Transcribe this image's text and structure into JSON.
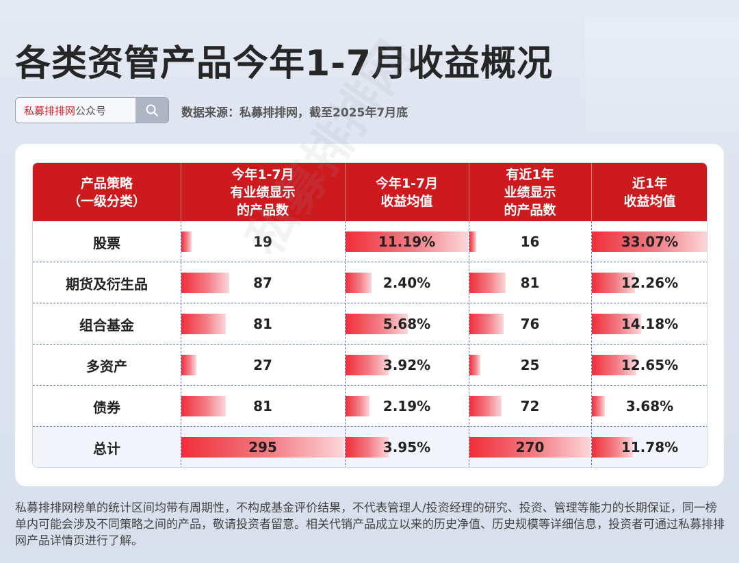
{
  "title": "各类资管产品今年1-7月收益概况",
  "search": {
    "brand": "私募排排网",
    "suffix": "公众号"
  },
  "source": "数据来源：私募排排网，截至2025年7月底",
  "watermark": "私募排排网",
  "chart_data": {
    "type": "table",
    "columns": [
      "产品策略\n（一级分类）",
      "今年1-7月\n有业绩显示\n的产品数",
      "今年1-7月\n收益均值",
      "有近1年\n业绩显示\n的产品数",
      "近1年\n收益均值"
    ],
    "rows": [
      {
        "strategy": "股票",
        "count_ytd": 19,
        "return_ytd": "11.19%",
        "count_1y": 16,
        "return_1y": "33.07%"
      },
      {
        "strategy": "期货及衍生品",
        "count_ytd": 87,
        "return_ytd": "2.40%",
        "count_1y": 81,
        "return_1y": "12.26%"
      },
      {
        "strategy": "组合基金",
        "count_ytd": 81,
        "return_ytd": "5.68%",
        "count_1y": 76,
        "return_1y": "14.18%"
      },
      {
        "strategy": "多资产",
        "count_ytd": 27,
        "return_ytd": "3.92%",
        "count_1y": 25,
        "return_1y": "12.65%"
      },
      {
        "strategy": "债券",
        "count_ytd": 81,
        "return_ytd": "2.19%",
        "count_1y": 72,
        "return_1y": "3.68%"
      },
      {
        "strategy": "总计",
        "count_ytd": 295,
        "return_ytd": "3.95%",
        "count_1y": 270,
        "return_1y": "11.78%"
      }
    ],
    "bar_color": "#ef2f3a",
    "header_color": "#cc1a1f"
  },
  "footnote": "私募排排网榜单的统计区间均带有周期性，不构成基金评价结果，不代表管理人/投资经理的研究、投资、管理等能力的长期保证，同一榜单内可能会涉及不同策略之间的产品，敬请投资者留意。相关代销产品成立以来的历史净值、历史规模等详细信息，投资者可通过私募排排网产品详情页进行了解。"
}
